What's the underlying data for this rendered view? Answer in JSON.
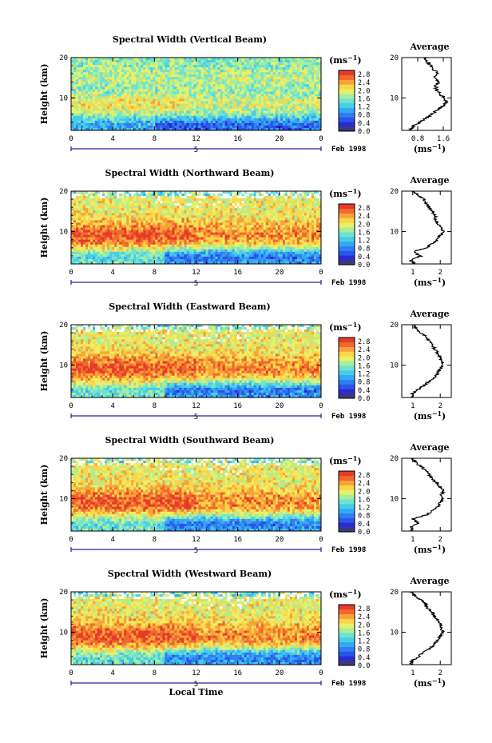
{
  "chart_data": [
    {
      "type": "heatmap",
      "title": "Spectral Width (Vertical Beam)",
      "ylabel": "Height (km)",
      "yticks": [
        "10",
        "20"
      ],
      "xticks": [
        "0",
        "4",
        "8",
        "12",
        "16",
        "20",
        "0"
      ],
      "xlim": [
        0,
        24
      ],
      "ylim": [
        2,
        20
      ],
      "date_marker": "5",
      "date_label": "Feb 1998",
      "colorbar": {
        "unit": "(ms",
        "unit_exp": "−1",
        "unit_close": ")",
        "ticks": [
          "0.0",
          "0.4",
          "0.8",
          "1.2",
          "1.6",
          "2.0",
          "2.4",
          "2.8"
        ],
        "range": [
          0,
          3.0
        ]
      },
      "profile": {
        "title": "Average",
        "xlabel": "(ms",
        "xlabel_exp": "−1",
        "xlabel_close": ")",
        "xticks": [
          "0.8",
          "1.6"
        ],
        "xtick_values": [
          0.8,
          1.6
        ],
        "xlim": [
          0.3,
          1.85
        ],
        "yticks": [
          "10",
          "20"
        ],
        "heights": [
          2,
          3,
          4,
          5,
          6,
          7,
          8,
          9,
          10,
          11,
          12,
          13,
          14,
          15,
          16,
          17,
          18,
          19,
          20
        ],
        "values": [
          0.55,
          0.65,
          0.85,
          1.05,
          1.25,
          1.4,
          1.6,
          1.7,
          1.65,
          1.5,
          1.4,
          1.35,
          1.45,
          1.3,
          1.45,
          1.3,
          1.2,
          1.1,
          1.0
        ]
      }
    },
    {
      "type": "heatmap",
      "title": "Spectral Width (Northward Beam)",
      "ylabel": "Height (km)",
      "yticks": [
        "10",
        "20"
      ],
      "xticks": [
        "0",
        "4",
        "8",
        "12",
        "16",
        "20",
        "0"
      ],
      "xlim": [
        0,
        24
      ],
      "ylim": [
        2,
        20
      ],
      "date_marker": "5",
      "date_label": "Feb 1998",
      "colorbar": {
        "unit": "(ms",
        "unit_exp": "−1",
        "unit_close": ")",
        "ticks": [
          "0.0",
          "0.4",
          "0.8",
          "1.2",
          "1.6",
          "2.0",
          "2.4",
          "2.8"
        ],
        "range": [
          0,
          3.0
        ]
      },
      "profile": {
        "title": "Average",
        "xlabel": "(ms",
        "xlabel_exp": "−1",
        "xlabel_close": ")",
        "xticks": [
          "1",
          "2"
        ],
        "xtick_values": [
          1,
          2
        ],
        "xlim": [
          0.6,
          2.4
        ],
        "yticks": [
          "10",
          "20"
        ],
        "heights": [
          2,
          3,
          4,
          5,
          6,
          7,
          8,
          9,
          10,
          11,
          12,
          13,
          14,
          15,
          16,
          17,
          18,
          19,
          20
        ],
        "values": [
          1.1,
          0.9,
          1.3,
          1.0,
          1.5,
          1.7,
          1.9,
          2.0,
          2.1,
          2.05,
          1.9,
          1.85,
          1.8,
          1.7,
          1.6,
          1.5,
          1.4,
          1.2,
          1.0
        ]
      }
    },
    {
      "type": "heatmap",
      "title": "Spectral Width (Eastward Beam)",
      "ylabel": "Height (km)",
      "yticks": [
        "10",
        "20"
      ],
      "xticks": [
        "0",
        "4",
        "8",
        "12",
        "16",
        "20",
        "0"
      ],
      "xlim": [
        0,
        24
      ],
      "ylim": [
        2,
        20
      ],
      "date_marker": "5",
      "date_label": "Feb 1998",
      "colorbar": {
        "unit": "(ms",
        "unit_exp": "−1",
        "unit_close": ")",
        "ticks": [
          "0.0",
          "0.4",
          "0.8",
          "1.2",
          "1.6",
          "2.0",
          "2.4",
          "2.8"
        ],
        "range": [
          0,
          3.0
        ]
      },
      "profile": {
        "title": "Average",
        "xlabel": "(ms",
        "xlabel_exp": "−1",
        "xlabel_close": ")",
        "xticks": [
          "1",
          "2"
        ],
        "xtick_values": [
          1,
          2
        ],
        "xlim": [
          0.6,
          2.4
        ],
        "yticks": [
          "10",
          "20"
        ],
        "heights": [
          2,
          3,
          4,
          5,
          6,
          7,
          8,
          9,
          10,
          11,
          12,
          13,
          14,
          15,
          16,
          17,
          18,
          19,
          20
        ],
        "values": [
          0.95,
          1.0,
          1.2,
          1.4,
          1.6,
          1.8,
          1.9,
          2.0,
          2.1,
          2.05,
          2.0,
          1.9,
          1.8,
          1.7,
          1.6,
          1.5,
          1.3,
          1.15,
          1.0
        ]
      }
    },
    {
      "type": "heatmap",
      "title": "Spectral Width (Southward Beam)",
      "ylabel": "Height (km)",
      "yticks": [
        "10",
        "20"
      ],
      "xticks": [
        "0",
        "4",
        "8",
        "12",
        "16",
        "20",
        "0"
      ],
      "xlim": [
        0,
        24
      ],
      "ylim": [
        2,
        20
      ],
      "date_marker": "5",
      "date_label": "Feb 1998",
      "colorbar": {
        "unit": "(ms",
        "unit_exp": "−1",
        "unit_close": ")",
        "ticks": [
          "0.0",
          "0.4",
          "0.8",
          "1.2",
          "1.6",
          "2.0",
          "2.4",
          "2.8"
        ],
        "range": [
          0,
          3.0
        ]
      },
      "profile": {
        "title": "Average",
        "xlabel": "(ms",
        "xlabel_exp": "−1",
        "xlabel_close": ")",
        "xticks": [
          "1",
          "2"
        ],
        "xtick_values": [
          1,
          2
        ],
        "xlim": [
          0.6,
          2.4
        ],
        "yticks": [
          "10",
          "20"
        ],
        "heights": [
          2,
          3,
          4,
          5,
          6,
          7,
          8,
          9,
          10,
          11,
          12,
          13,
          14,
          15,
          16,
          17,
          18,
          19,
          20
        ],
        "values": [
          1.0,
          0.9,
          1.2,
          1.0,
          1.5,
          1.7,
          1.9,
          2.0,
          2.1,
          2.05,
          2.1,
          2.0,
          1.85,
          1.7,
          1.6,
          1.45,
          1.3,
          1.1,
          1.0
        ]
      }
    },
    {
      "type": "heatmap",
      "title": "Spectral Width (Westward Beam)",
      "ylabel": "Height (km)",
      "yticks": [
        "10",
        "20"
      ],
      "xticks": [
        "0",
        "4",
        "8",
        "12",
        "16",
        "20",
        "0"
      ],
      "xlim": [
        0,
        24
      ],
      "ylim": [
        2,
        20
      ],
      "date_marker": "5",
      "date_label": "Feb 1998",
      "xlabel": "Local Time",
      "colorbar": {
        "unit": "(ms",
        "unit_exp": "−1",
        "unit_close": ")",
        "ticks": [
          "0.0",
          "0.4",
          "0.8",
          "1.2",
          "1.6",
          "2.0",
          "2.4",
          "2.8"
        ],
        "range": [
          0,
          3.0
        ]
      },
      "profile": {
        "title": "Average",
        "xlabel": "(ms",
        "xlabel_exp": "−1",
        "xlabel_close": ")",
        "xticks": [
          "1",
          "2"
        ],
        "xtick_values": [
          1,
          2
        ],
        "xlim": [
          0.6,
          2.4
        ],
        "yticks": [
          "10",
          "20"
        ],
        "heights": [
          2,
          3,
          4,
          5,
          6,
          7,
          8,
          9,
          10,
          11,
          12,
          13,
          14,
          15,
          16,
          17,
          18,
          19,
          20
        ],
        "values": [
          0.9,
          1.0,
          1.2,
          1.4,
          1.6,
          1.8,
          1.9,
          2.0,
          2.1,
          2.05,
          2.0,
          1.9,
          1.8,
          1.7,
          1.55,
          1.45,
          1.3,
          1.1,
          0.95
        ]
      }
    }
  ],
  "colors": {
    "colormap": [
      "#3a3a7a",
      "#2b2bd4",
      "#2a55e8",
      "#2f7ff0",
      "#35a8f5",
      "#48cde8",
      "#6fe3d2",
      "#a8ee9c",
      "#e8f06a",
      "#fbd648",
      "#f8a33a",
      "#f06a2e",
      "#e63a2a"
    ],
    "axis": "#000000",
    "date_marker": "#2020a0"
  }
}
